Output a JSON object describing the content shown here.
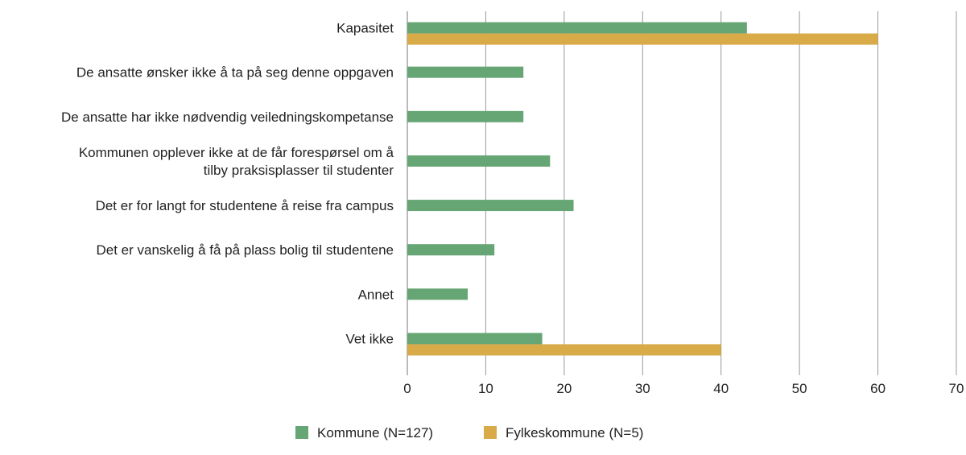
{
  "chart_data": {
    "type": "bar",
    "orientation": "horizontal",
    "categories": [
      [
        "Kapasitet"
      ],
      [
        "De ansatte ønsker ikke å ta på seg denne oppgaven"
      ],
      [
        "De ansatte har ikke nødvendig veiledningskompetanse"
      ],
      [
        "Kommunen opplever ikke at de får forespørsel om å",
        "tilby praksisplasser til studenter"
      ],
      [
        "Det er for langt for studentene å reise fra campus"
      ],
      [
        "Det er vanskelig å få på plass bolig til studentene"
      ],
      [
        "Annet"
      ],
      [
        "Vet ikke"
      ]
    ],
    "series": [
      {
        "name": "Kommune (N=127)",
        "color": "#66a674",
        "values": [
          43.3,
          14.8,
          14.8,
          18.2,
          21.2,
          11.1,
          7.7,
          17.2
        ]
      },
      {
        "name": "Fylkeskommune (N=5)",
        "color": "#d9aa48",
        "values": [
          60,
          null,
          null,
          null,
          null,
          null,
          null,
          40
        ]
      }
    ],
    "xlim": [
      0,
      70
    ],
    "xticks": [
      0,
      10,
      20,
      30,
      40,
      50,
      60,
      70
    ],
    "grid": true,
    "legend": "bottom",
    "title": "",
    "xlabel": "",
    "ylabel": ""
  }
}
